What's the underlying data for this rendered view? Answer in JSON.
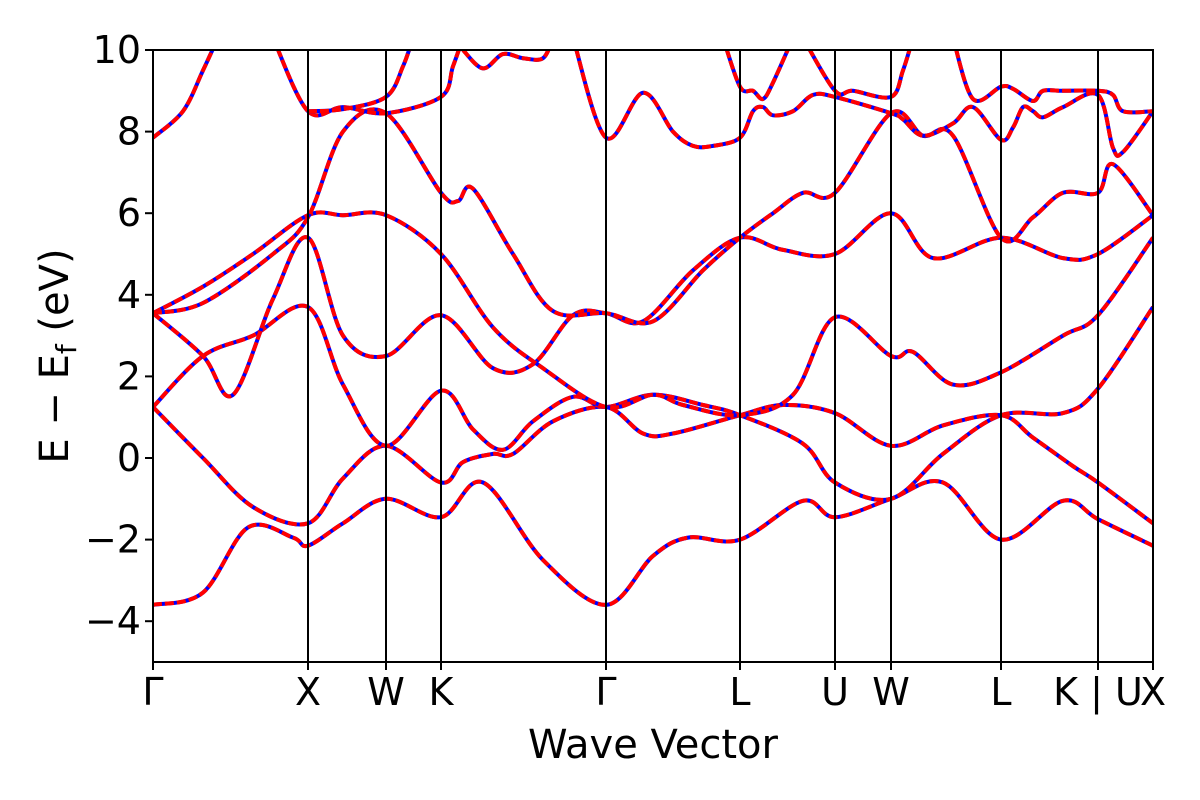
{
  "chart_data": {
    "type": "line",
    "title": "",
    "xlabel": "Wave Vector",
    "ylabel": "E − E",
    "ylabel_sub": "f",
    "ylabel_unit": " (eV)",
    "ylim": [
      -5,
      10
    ],
    "yticks": [
      -4,
      -2,
      0,
      2,
      4,
      6,
      8,
      10
    ],
    "ytick_labels": [
      "−4",
      "−2",
      "0",
      "2",
      "4",
      "6",
      "8",
      "10"
    ],
    "xlim": [
      0,
      100
    ],
    "kpoints": [
      {
        "label": "Γ",
        "x": 0
      },
      {
        "label": "X",
        "x": 15.5
      },
      {
        "label": "W",
        "x": 23.3
      },
      {
        "label": "K",
        "x": 28.8
      },
      {
        "label": "Γ",
        "x": 45.3
      },
      {
        "label": "L",
        "x": 58.7
      },
      {
        "label": "U",
        "x": 68.2
      },
      {
        "label": "W",
        "x": 73.8
      },
      {
        "label": "L",
        "x": 84.8
      },
      {
        "label": "K | U",
        "x": 94.5
      },
      {
        "label": "X",
        "x": 100
      }
    ],
    "grid": false,
    "legend": "none",
    "line_colors": {
      "base": "#0000ff",
      "overlay": "#ff0000"
    },
    "series": [
      {
        "values": [
          [
            0,
            -3.6
          ],
          [
            5,
            -3.3
          ],
          [
            9.5,
            -1.7
          ],
          [
            14,
            -1.95
          ],
          [
            15.5,
            -2.15
          ],
          [
            19,
            -1.6
          ],
          [
            23.3,
            -1.0
          ],
          [
            28.8,
            -1.45
          ],
          [
            33,
            -0.6
          ],
          [
            39,
            -2.5
          ],
          [
            45.3,
            -3.6
          ],
          [
            50,
            -2.4
          ],
          [
            53.5,
            -1.95
          ],
          [
            58.7,
            -2.0
          ],
          [
            65,
            -1.05
          ],
          [
            68.2,
            -1.45
          ],
          [
            73.8,
            -1.0
          ],
          [
            79,
            -0.6
          ],
          [
            84.8,
            -2.0
          ],
          [
            91,
            -1.05
          ],
          [
            94.5,
            -1.5
          ],
          [
            100,
            -2.15
          ]
        ]
      },
      {
        "values": [
          [
            0,
            1.25
          ],
          [
            5,
            0.0
          ],
          [
            10,
            -1.2
          ],
          [
            15.5,
            -1.6
          ],
          [
            19,
            -0.5
          ],
          [
            23.3,
            0.3
          ],
          [
            28.8,
            -0.6
          ],
          [
            31,
            -0.1
          ],
          [
            34,
            0.1
          ],
          [
            36,
            0.1
          ],
          [
            40,
            0.9
          ],
          [
            45.3,
            1.25
          ],
          [
            49,
            0.6
          ],
          [
            52,
            0.6
          ],
          [
            58.7,
            1.05
          ],
          [
            63,
            1.3
          ],
          [
            68.2,
            1.1
          ],
          [
            73.8,
            0.3
          ],
          [
            79,
            0.8
          ],
          [
            84.8,
            1.05
          ],
          [
            88,
            0.5
          ],
          [
            92,
            -0.2
          ],
          [
            94.5,
            -0.6
          ],
          [
            100,
            -1.6
          ]
        ]
      },
      {
        "values": [
          [
            0,
            1.25
          ],
          [
            5,
            2.5
          ],
          [
            10,
            3.0
          ],
          [
            15.5,
            3.7
          ],
          [
            19,
            1.8
          ],
          [
            23.3,
            0.3
          ],
          [
            28.8,
            1.65
          ],
          [
            32,
            0.7
          ],
          [
            35,
            0.2
          ],
          [
            38,
            0.9
          ],
          [
            42,
            1.5
          ],
          [
            45.3,
            1.25
          ],
          [
            50,
            1.55
          ],
          [
            55,
            1.3
          ],
          [
            58.7,
            1.05
          ],
          [
            65,
            0.35
          ],
          [
            68.2,
            -0.6
          ],
          [
            73.8,
            -1.0
          ],
          [
            79,
            0.1
          ],
          [
            84.8,
            1.05
          ],
          [
            91,
            1.1
          ],
          [
            94.5,
            1.7
          ],
          [
            100,
            3.7
          ]
        ]
      },
      {
        "values": [
          [
            0,
            3.55
          ],
          [
            5,
            2.5
          ],
          [
            8,
            1.55
          ],
          [
            12,
            3.9
          ],
          [
            15.5,
            5.4
          ],
          [
            19,
            3.0
          ],
          [
            23.3,
            2.5
          ],
          [
            28.8,
            3.5
          ],
          [
            34,
            2.2
          ],
          [
            38,
            2.3
          ],
          [
            42,
            3.5
          ],
          [
            45.3,
            3.55
          ],
          [
            49,
            3.35
          ],
          [
            54,
            4.6
          ],
          [
            58.7,
            5.4
          ],
          [
            63,
            5.1
          ],
          [
            68.2,
            5.0
          ],
          [
            73.8,
            6.0
          ],
          [
            78,
            4.9
          ],
          [
            84.8,
            5.4
          ],
          [
            91,
            4.9
          ],
          [
            94.5,
            5.0
          ],
          [
            100,
            5.95
          ]
        ]
      },
      {
        "values": [
          [
            0,
            3.55
          ],
          [
            5,
            4.2
          ],
          [
            10,
            5.0
          ],
          [
            15.5,
            5.95
          ],
          [
            19,
            5.95
          ],
          [
            23.3,
            5.95
          ],
          [
            28.8,
            5.0
          ],
          [
            34,
            3.2
          ],
          [
            39,
            2.2
          ],
          [
            45.3,
            1.25
          ],
          [
            50,
            1.55
          ],
          [
            53,
            1.3
          ],
          [
            58.7,
            1.05
          ],
          [
            64,
            1.55
          ],
          [
            68.2,
            3.45
          ],
          [
            73.8,
            2.5
          ],
          [
            76,
            2.6
          ],
          [
            80,
            1.8
          ],
          [
            84.8,
            2.1
          ],
          [
            91,
            3.0
          ],
          [
            94.5,
            3.5
          ],
          [
            100,
            5.4
          ]
        ]
      },
      {
        "values": [
          [
            0,
            3.55
          ],
          [
            5,
            3.8
          ],
          [
            12,
            5.0
          ],
          [
            15.5,
            5.9
          ],
          [
            19,
            8.0
          ],
          [
            23.3,
            8.45
          ],
          [
            28.8,
            6.5
          ],
          [
            30.5,
            6.3
          ],
          [
            32,
            6.6
          ],
          [
            36,
            5.0
          ],
          [
            40,
            3.6
          ],
          [
            45.3,
            3.55
          ],
          [
            50,
            3.35
          ],
          [
            55,
            4.6
          ],
          [
            58.7,
            5.4
          ],
          [
            62,
            6.0
          ],
          [
            65,
            6.5
          ],
          [
            68.2,
            6.5
          ],
          [
            73.8,
            8.45
          ],
          [
            77,
            7.9
          ],
          [
            80,
            7.9
          ],
          [
            84.8,
            5.4
          ],
          [
            88,
            5.9
          ],
          [
            91,
            6.5
          ],
          [
            94.5,
            6.5
          ],
          [
            96,
            7.2
          ],
          [
            100,
            5.95
          ]
        ]
      },
      {
        "values": [
          [
            0,
            7.85
          ],
          [
            3,
            8.5
          ],
          [
            5,
            9.5
          ],
          [
            6.5,
            10.3
          ]
        ]
      },
      {
        "values": [
          [
            12,
            10.3
          ],
          [
            15.5,
            8.5
          ],
          [
            19,
            8.6
          ],
          [
            23.3,
            8.45
          ],
          [
            28.8,
            8.85
          ],
          [
            30,
            9.6
          ],
          [
            31,
            10.3
          ]
        ]
      },
      {
        "values": [
          [
            15.5,
            8.5
          ],
          [
            19,
            8.55
          ],
          [
            23.3,
            8.85
          ],
          [
            25,
            9.6
          ],
          [
            26,
            10.3
          ]
        ]
      },
      {
        "values": [
          [
            31,
            10.0
          ],
          [
            33,
            9.55
          ],
          [
            35,
            9.9
          ],
          [
            37,
            9.8
          ],
          [
            39,
            9.8
          ],
          [
            40,
            10.3
          ]
        ]
      },
      {
        "values": [
          [
            42,
            10.3
          ],
          [
            45.3,
            7.85
          ],
          [
            49,
            8.95
          ],
          [
            52,
            8.0
          ],
          [
            54,
            7.65
          ],
          [
            56,
            7.65
          ],
          [
            58.7,
            7.85
          ],
          [
            60,
            8.5
          ],
          [
            61,
            8.6
          ],
          [
            62,
            8.4
          ],
          [
            64,
            8.5
          ],
          [
            66,
            8.9
          ],
          [
            68.2,
            8.85
          ],
          [
            73.8,
            8.45
          ],
          [
            75,
            8.3
          ],
          [
            77,
            7.9
          ],
          [
            80,
            8.2
          ],
          [
            82,
            8.6
          ],
          [
            84.8,
            7.8
          ],
          [
            86,
            8.1
          ],
          [
            87,
            8.6
          ],
          [
            88,
            8.5
          ],
          [
            89,
            8.35
          ],
          [
            91,
            8.6
          ],
          [
            94.5,
            8.9
          ],
          [
            96,
            7.6
          ],
          [
            97,
            7.5
          ],
          [
            100,
            8.5
          ]
        ]
      },
      {
        "values": [
          [
            57,
            10.3
          ],
          [
            58.7,
            9.1
          ],
          [
            60,
            9.0
          ],
          [
            61,
            8.8
          ],
          [
            62,
            9.2
          ],
          [
            64,
            10.3
          ]
        ]
      },
      {
        "values": [
          [
            65,
            10.3
          ],
          [
            68.2,
            9.0
          ],
          [
            70,
            9.0
          ],
          [
            73.8,
            8.85
          ],
          [
            75,
            9.5
          ],
          [
            76,
            10.3
          ]
        ]
      },
      {
        "values": [
          [
            80,
            10.3
          ],
          [
            82,
            8.8
          ],
          [
            84.8,
            9.1
          ],
          [
            86,
            9.05
          ],
          [
            88,
            8.75
          ],
          [
            89,
            9.0
          ],
          [
            91,
            9.0
          ],
          [
            94.5,
            9.0
          ],
          [
            96,
            8.9
          ],
          [
            97,
            8.5
          ],
          [
            100,
            8.5
          ]
        ]
      }
    ]
  }
}
